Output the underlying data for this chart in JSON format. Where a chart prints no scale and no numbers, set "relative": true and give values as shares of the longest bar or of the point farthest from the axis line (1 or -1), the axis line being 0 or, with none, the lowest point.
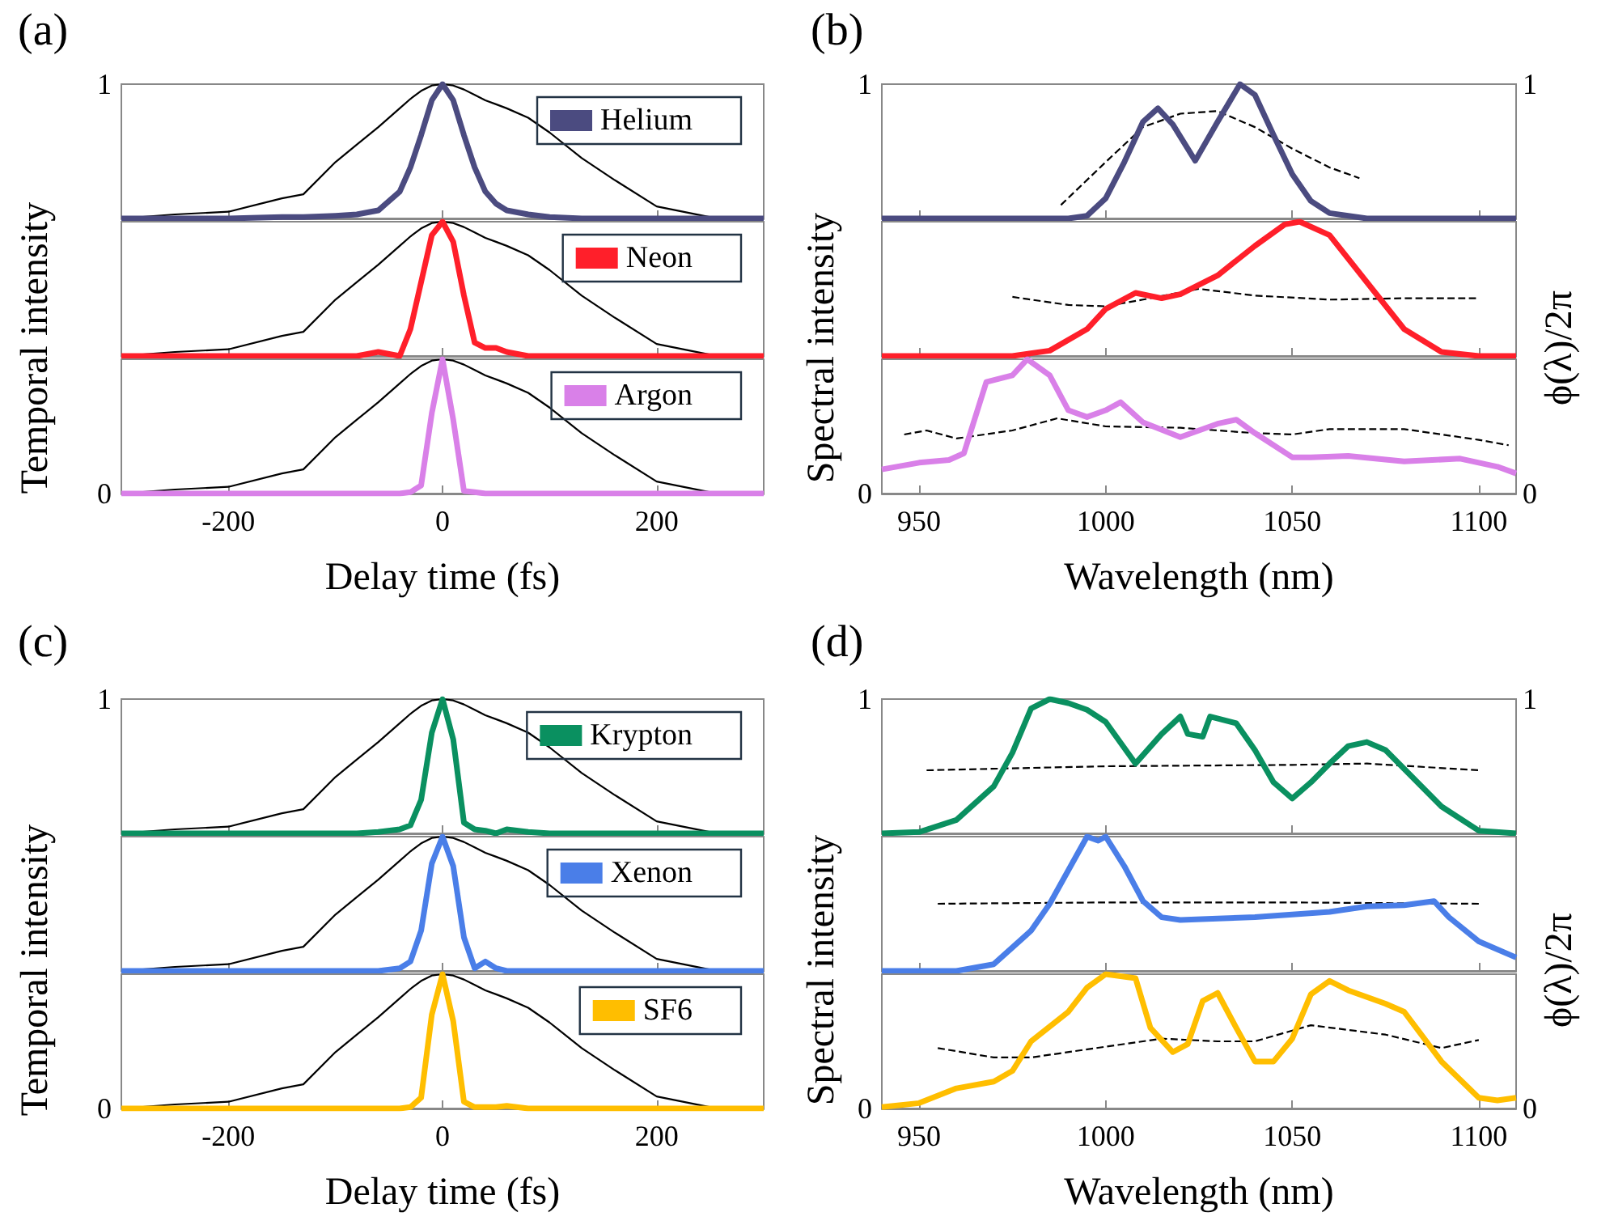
{
  "chart_data": [
    {
      "type": "line",
      "title": "(a)",
      "relative": true,
      "annotations": [
        "1"
      ],
      "x": [
        -300,
        -250,
        -200,
        -150,
        -130,
        -100,
        -80,
        -60,
        -40,
        -30,
        -20,
        -10,
        0,
        10,
        20,
        30,
        40,
        50,
        60,
        80,
        100,
        130,
        160,
        200,
        250,
        300
      ],
      "xlim": [
        -300,
        300
      ],
      "xticks": [
        -200,
        0,
        200
      ],
      "tick_labels": false,
      "legend": "top right",
      "series": [
        {
          "color": "#000000",
          "values": [
            0,
            0.03,
            0.05,
            0.15,
            0.18,
            0.42,
            0.55,
            0.68,
            0.82,
            0.89,
            0.95,
            0.99,
            1,
            0.99,
            0.96,
            0.92,
            0.88,
            0.85,
            0.82,
            0.75,
            0.64,
            0.45,
            0.29,
            0.09,
            0.01,
            0
          ]
        },
        {
          "name": "Helium",
          "color": "#4b4b80",
          "values": [
            0,
            0,
            0,
            0.01,
            0.01,
            0.02,
            0.03,
            0.06,
            0.2,
            0.38,
            0.62,
            0.88,
            1,
            0.88,
            0.62,
            0.38,
            0.2,
            0.11,
            0.06,
            0.03,
            0.01,
            0,
            0,
            0,
            0,
            0
          ]
        }
      ]
    },
    {
      "type": "line",
      "relative": true,
      "ylabel": "Temporal intensity",
      "x": [
        -300,
        -250,
        -200,
        -150,
        -130,
        -100,
        -80,
        -60,
        -40,
        -30,
        -20,
        -10,
        0,
        10,
        20,
        30,
        40,
        50,
        60,
        80,
        100,
        130,
        160,
        200,
        250,
        300
      ],
      "xlim": [
        -300,
        300
      ],
      "xticks": [
        -200,
        0,
        200
      ],
      "tick_labels": false,
      "legend": "top right",
      "series": [
        {
          "color": "#000000",
          "values": [
            0,
            0.03,
            0.05,
            0.15,
            0.18,
            0.42,
            0.55,
            0.68,
            0.82,
            0.89,
            0.95,
            0.99,
            1,
            0.99,
            0.96,
            0.92,
            0.88,
            0.85,
            0.82,
            0.75,
            0.64,
            0.45,
            0.29,
            0.09,
            0.01,
            0
          ]
        },
        {
          "name": "Neon",
          "color": "#ff1f2a",
          "values": [
            0,
            0,
            0,
            0,
            0,
            0,
            0,
            0.03,
            0,
            0.2,
            0.55,
            0.9,
            1,
            0.85,
            0.45,
            0.1,
            0.06,
            0.06,
            0.03,
            0,
            0,
            0,
            0,
            0,
            0,
            0
          ]
        }
      ]
    },
    {
      "type": "line",
      "relative": true,
      "annotations": [
        "0"
      ],
      "xlabel": "Delay time (fs)",
      "x": [
        -300,
        -250,
        -200,
        -150,
        -130,
        -100,
        -80,
        -60,
        -40,
        -30,
        -20,
        -10,
        0,
        10,
        20,
        30,
        40,
        50,
        60,
        80,
        100,
        130,
        160,
        200,
        250,
        300
      ],
      "xlim": [
        -300,
        300
      ],
      "xticks": [
        -200,
        0,
        200
      ],
      "tick_labels": "x",
      "legend": "top right",
      "series": [
        {
          "color": "#000000",
          "values": [
            0,
            0.03,
            0.05,
            0.15,
            0.18,
            0.42,
            0.55,
            0.68,
            0.82,
            0.89,
            0.95,
            0.99,
            1,
            0.99,
            0.96,
            0.92,
            0.88,
            0.85,
            0.82,
            0.75,
            0.64,
            0.45,
            0.29,
            0.09,
            0.01,
            0
          ]
        },
        {
          "name": "Argon",
          "color": "#d980e8",
          "values": [
            0,
            0,
            0,
            0,
            0,
            0,
            0,
            0,
            0,
            0.01,
            0.06,
            0.6,
            1,
            0.55,
            0.02,
            0.01,
            0,
            0,
            0,
            0,
            0,
            0,
            0,
            0,
            0,
            0
          ]
        }
      ]
    },
    {
      "type": "line",
      "title": "(b)",
      "relative": true,
      "annotations": [
        "1",
        "1"
      ],
      "xlim": [
        940,
        1110
      ],
      "xticks": [
        950,
        1000,
        1050,
        1100
      ],
      "tick_labels": false,
      "series": [
        {
          "color": "#4b4b80",
          "x": [
            940,
            980,
            990,
            995,
            1000,
            1005,
            1010,
            1014,
            1018,
            1024,
            1030,
            1036,
            1040,
            1045,
            1050,
            1055,
            1060,
            1070,
            1110
          ],
          "values": [
            0,
            0,
            0,
            0.02,
            0.15,
            0.42,
            0.72,
            0.82,
            0.7,
            0.43,
            0.72,
            1,
            0.92,
            0.62,
            0.33,
            0.13,
            0.04,
            0,
            0
          ]
        },
        {
          "line_style": "dashed",
          "color": "#000000",
          "x": [
            988,
            1000,
            1010,
            1020,
            1030,
            1040,
            1050,
            1060,
            1068
          ],
          "values": [
            0.1,
            0.42,
            0.68,
            0.78,
            0.8,
            0.68,
            0.52,
            0.38,
            0.3
          ]
        }
      ]
    },
    {
      "type": "line",
      "relative": true,
      "ylabel": "Spectral intensity",
      "y2label": "ϕ(λ)/2π",
      "xlim": [
        940,
        1110
      ],
      "xticks": [
        950,
        1000,
        1050,
        1100
      ],
      "tick_labels": false,
      "series": [
        {
          "color": "#ff1f2a",
          "x": [
            940,
            975,
            985,
            995,
            1000,
            1008,
            1015,
            1020,
            1030,
            1040,
            1048,
            1052,
            1060,
            1070,
            1080,
            1090,
            1100,
            1110
          ],
          "values": [
            0,
            0,
            0.04,
            0.2,
            0.35,
            0.47,
            0.43,
            0.46,
            0.6,
            0.82,
            0.98,
            1,
            0.9,
            0.55,
            0.2,
            0.03,
            0,
            0
          ]
        },
        {
          "line_style": "dashed",
          "color": "#000000",
          "x": [
            975,
            990,
            1000,
            1010,
            1025,
            1040,
            1060,
            1080,
            1100
          ],
          "values": [
            0.44,
            0.38,
            0.37,
            0.42,
            0.5,
            0.45,
            0.42,
            0.43,
            0.43
          ]
        }
      ]
    },
    {
      "type": "line",
      "relative": true,
      "annotations": [
        "0",
        "0"
      ],
      "xlabel": "Wavelength (nm)",
      "xlim": [
        940,
        1110
      ],
      "xticks": [
        950,
        1000,
        1050,
        1100
      ],
      "tick_labels": "x",
      "series": [
        {
          "color": "#d980e8",
          "x": [
            940,
            950,
            958,
            962,
            968,
            975,
            979,
            985,
            990,
            995,
            1000,
            1004,
            1010,
            1020,
            1030,
            1035,
            1040,
            1050,
            1055,
            1065,
            1080,
            1095,
            1105,
            1110
          ],
          "values": [
            0.18,
            0.23,
            0.25,
            0.3,
            0.83,
            0.88,
            1,
            0.88,
            0.62,
            0.57,
            0.62,
            0.68,
            0.53,
            0.42,
            0.52,
            0.55,
            0.45,
            0.27,
            0.27,
            0.28,
            0.24,
            0.26,
            0.2,
            0.15
          ]
        },
        {
          "line_style": "dashed",
          "color": "#000000",
          "x": [
            946,
            952,
            960,
            975,
            987,
            1000,
            1020,
            1040,
            1050,
            1060,
            1080,
            1100,
            1108
          ],
          "values": [
            0.44,
            0.47,
            0.41,
            0.47,
            0.56,
            0.5,
            0.49,
            0.45,
            0.44,
            0.48,
            0.48,
            0.4,
            0.36
          ]
        }
      ]
    },
    {
      "type": "line",
      "title": "(c)",
      "relative": true,
      "annotations": [
        "1"
      ],
      "x": [
        -300,
        -250,
        -200,
        -150,
        -130,
        -100,
        -80,
        -60,
        -40,
        -30,
        -20,
        -10,
        0,
        10,
        20,
        30,
        40,
        50,
        60,
        80,
        100,
        130,
        160,
        200,
        250,
        300
      ],
      "xlim": [
        -300,
        300
      ],
      "xticks": [
        -200,
        0,
        200
      ],
      "tick_labels": false,
      "legend": "top right",
      "series": [
        {
          "color": "#000000",
          "values": [
            0,
            0.03,
            0.05,
            0.15,
            0.18,
            0.42,
            0.55,
            0.68,
            0.82,
            0.89,
            0.95,
            0.99,
            1,
            0.99,
            0.96,
            0.92,
            0.88,
            0.85,
            0.82,
            0.75,
            0.64,
            0.45,
            0.29,
            0.09,
            0.01,
            0
          ]
        },
        {
          "name": "Krypton",
          "color": "#0a9060",
          "values": [
            0,
            0,
            0,
            0,
            0,
            0,
            0,
            0.01,
            0.03,
            0.06,
            0.25,
            0.75,
            1,
            0.7,
            0.08,
            0.03,
            0.02,
            0,
            0.03,
            0.01,
            0,
            0,
            0,
            0,
            0,
            0
          ]
        }
      ]
    },
    {
      "type": "line",
      "relative": true,
      "ylabel": "Temporal intensity",
      "x": [
        -300,
        -250,
        -200,
        -150,
        -130,
        -100,
        -80,
        -60,
        -40,
        -30,
        -20,
        -10,
        0,
        10,
        20,
        30,
        40,
        50,
        60,
        80,
        100,
        130,
        160,
        200,
        250,
        300
      ],
      "xlim": [
        -300,
        300
      ],
      "xticks": [
        -200,
        0,
        200
      ],
      "tick_labels": false,
      "legend": "top right",
      "series": [
        {
          "color": "#000000",
          "values": [
            0,
            0.03,
            0.05,
            0.15,
            0.18,
            0.42,
            0.55,
            0.68,
            0.82,
            0.89,
            0.95,
            0.99,
            1,
            0.99,
            0.96,
            0.92,
            0.88,
            0.85,
            0.82,
            0.75,
            0.64,
            0.45,
            0.29,
            0.09,
            0.01,
            0
          ]
        },
        {
          "name": "Xenon",
          "color": "#4a7ee8",
          "values": [
            0,
            0,
            0,
            0,
            0,
            0,
            0,
            0,
            0.02,
            0.07,
            0.3,
            0.8,
            1,
            0.78,
            0.25,
            0.02,
            0.07,
            0.02,
            0,
            0,
            0,
            0,
            0,
            0,
            0,
            0
          ]
        }
      ]
    },
    {
      "type": "line",
      "relative": true,
      "annotations": [
        "0"
      ],
      "xlabel": "Delay time (fs)",
      "x": [
        -300,
        -250,
        -200,
        -150,
        -130,
        -100,
        -80,
        -60,
        -40,
        -30,
        -20,
        -10,
        0,
        10,
        20,
        30,
        40,
        50,
        60,
        80,
        100,
        130,
        160,
        200,
        250,
        300
      ],
      "xlim": [
        -300,
        300
      ],
      "xticks": [
        -200,
        0,
        200
      ],
      "tick_labels": "x",
      "legend": "top right",
      "series": [
        {
          "color": "#000000",
          "values": [
            0,
            0.03,
            0.05,
            0.15,
            0.18,
            0.42,
            0.55,
            0.68,
            0.82,
            0.89,
            0.95,
            0.99,
            1,
            0.99,
            0.96,
            0.92,
            0.88,
            0.85,
            0.82,
            0.75,
            0.64,
            0.45,
            0.29,
            0.09,
            0.01,
            0
          ]
        },
        {
          "name": "SF6",
          "color": "#ffbe00",
          "values": [
            0,
            0,
            0,
            0,
            0,
            0,
            0,
            0,
            0,
            0.01,
            0.08,
            0.7,
            1,
            0.65,
            0.05,
            0.01,
            0.01,
            0.01,
            0.02,
            0,
            0,
            0,
            0,
            0,
            0,
            0
          ]
        }
      ]
    },
    {
      "type": "line",
      "title": "(d)",
      "relative": true,
      "annotations": [
        "1",
        "1"
      ],
      "xlim": [
        940,
        1110
      ],
      "xticks": [
        950,
        1000,
        1050,
        1100
      ],
      "tick_labels": false,
      "series": [
        {
          "color": "#0a9060",
          "x": [
            940,
            950,
            960,
            970,
            975,
            980,
            985,
            990,
            995,
            1000,
            1008,
            1015,
            1020,
            1022,
            1026,
            1028,
            1035,
            1040,
            1045,
            1050,
            1055,
            1060,
            1065,
            1070,
            1075,
            1080,
            1090,
            1100,
            1110
          ],
          "values": [
            0,
            0.01,
            0.1,
            0.35,
            0.6,
            0.93,
            1,
            0.97,
            0.92,
            0.83,
            0.52,
            0.74,
            0.87,
            0.74,
            0.72,
            0.87,
            0.82,
            0.62,
            0.38,
            0.26,
            0.38,
            0.52,
            0.65,
            0.68,
            0.62,
            0.48,
            0.2,
            0.02,
            0
          ]
        },
        {
          "line_style": "dashed",
          "color": "#000000",
          "x": [
            952,
            1000,
            1050,
            1070,
            1100
          ],
          "values": [
            0.47,
            0.5,
            0.51,
            0.52,
            0.47
          ]
        }
      ]
    },
    {
      "type": "line",
      "relative": true,
      "ylabel": "Spectral intensity",
      "y2label": "ϕ(λ)/2π",
      "xlim": [
        940,
        1110
      ],
      "xticks": [
        950,
        1000,
        1050,
        1100
      ],
      "tick_labels": false,
      "series": [
        {
          "color": "#4a7ee8",
          "x": [
            940,
            960,
            970,
            980,
            985,
            990,
            995,
            998,
            1000,
            1005,
            1010,
            1015,
            1020,
            1030,
            1040,
            1050,
            1060,
            1070,
            1080,
            1088,
            1092,
            1100,
            1110
          ],
          "values": [
            0,
            0,
            0.05,
            0.3,
            0.5,
            0.75,
            1,
            0.97,
            1,
            0.78,
            0.52,
            0.4,
            0.38,
            0.39,
            0.4,
            0.42,
            0.44,
            0.48,
            0.49,
            0.52,
            0.4,
            0.22,
            0.1
          ]
        },
        {
          "line_style": "dashed",
          "color": "#000000",
          "x": [
            955,
            1000,
            1050,
            1100
          ],
          "values": [
            0.5,
            0.51,
            0.51,
            0.5
          ]
        }
      ]
    },
    {
      "type": "line",
      "relative": true,
      "annotations": [
        "0",
        "0"
      ],
      "xlabel": "Wavelength (nm)",
      "xlim": [
        940,
        1110
      ],
      "xticks": [
        950,
        1000,
        1050,
        1100
      ],
      "tick_labels": "x",
      "series": [
        {
          "color": "#ffbe00",
          "x": [
            940,
            950,
            960,
            970,
            975,
            980,
            990,
            995,
            1000,
            1008,
            1012,
            1018,
            1022,
            1026,
            1030,
            1035,
            1040,
            1045,
            1050,
            1055,
            1060,
            1065,
            1075,
            1080,
            1090,
            1100,
            1105,
            1110
          ],
          "values": [
            0.01,
            0.04,
            0.15,
            0.2,
            0.28,
            0.5,
            0.72,
            0.9,
            1,
            0.97,
            0.6,
            0.42,
            0.48,
            0.8,
            0.86,
            0.6,
            0.35,
            0.35,
            0.52,
            0.85,
            0.95,
            0.88,
            0.78,
            0.72,
            0.35,
            0.08,
            0.06,
            0.08
          ]
        },
        {
          "line_style": "dashed",
          "color": "#000000",
          "x": [
            955,
            970,
            980,
            1000,
            1015,
            1030,
            1040,
            1055,
            1075,
            1090,
            1100
          ],
          "values": [
            0.45,
            0.38,
            0.38,
            0.46,
            0.52,
            0.5,
            0.5,
            0.62,
            0.55,
            0.45,
            0.51
          ]
        }
      ]
    }
  ]
}
